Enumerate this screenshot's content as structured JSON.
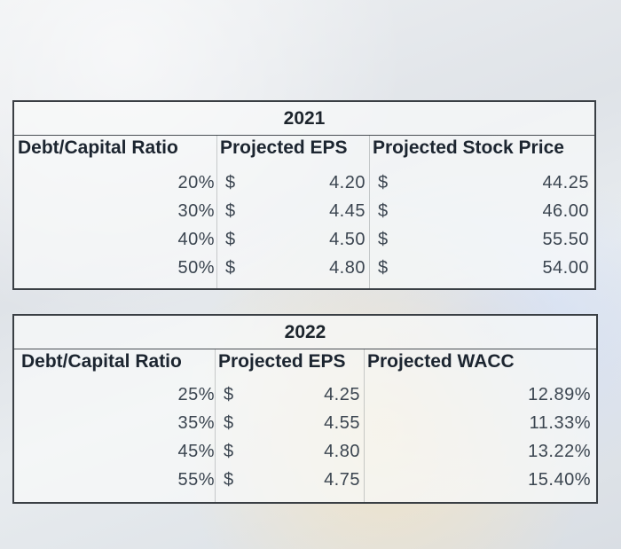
{
  "table_2021": {
    "year": "2021",
    "headers": [
      "Debt/Capital Ratio",
      "Projected EPS",
      "Projected Stock Price"
    ],
    "rows": [
      {
        "ratio": "20%",
        "eps_cur": "$",
        "eps": "4.20",
        "price_cur": "$",
        "price": "44.25"
      },
      {
        "ratio": "30%",
        "eps_cur": "$",
        "eps": "4.45",
        "price_cur": "$",
        "price": "46.00"
      },
      {
        "ratio": "40%",
        "eps_cur": "$",
        "eps": "4.50",
        "price_cur": "$",
        "price": "55.50"
      },
      {
        "ratio": "50%",
        "eps_cur": "$",
        "eps": "4.80",
        "price_cur": "$",
        "price": "54.00"
      }
    ]
  },
  "table_2022": {
    "year": "2022",
    "headers": [
      "Debt/Capital Ratio",
      "Projected EPS",
      "Projected WACC"
    ],
    "rows": [
      {
        "ratio": "25%",
        "eps_cur": "$",
        "eps": "4.25",
        "wacc": "12.89%"
      },
      {
        "ratio": "35%",
        "eps_cur": "$",
        "eps": "4.55",
        "wacc": "11.33%"
      },
      {
        "ratio": "45%",
        "eps_cur": "$",
        "eps": "4.80",
        "wacc": "13.22%"
      },
      {
        "ratio": "55%",
        "eps_cur": "$",
        "eps": "4.75",
        "wacc": "15.40%"
      }
    ]
  }
}
